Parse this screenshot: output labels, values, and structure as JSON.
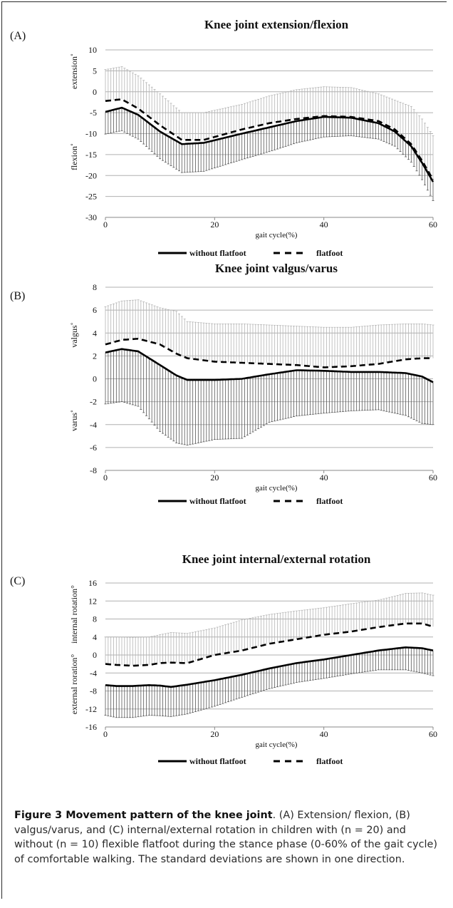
{
  "caption": {
    "title": "Figure 3 Movement pattern of the knee joint",
    "body": ". (A) Extension/ flexion, (B) valgus/varus, and (C) internal/external rotation in children with (n = 20) and without (n = 10) flexible flatfoot during the stance phase (0-60% of the gait cycle) of comfortable walking. The standard deviations are shown in one direction."
  },
  "colors": {
    "without_flatfoot": "#000000",
    "flatfoot": "#000000",
    "sd_without": "#555555",
    "sd_flatfoot": "#b4b4b4",
    "gridline": "#b0b0b0"
  },
  "chart_data": [
    {
      "panel": "(A)",
      "type": "line",
      "title": "Knee joint extension/flexion",
      "xlabel": "gait cycle(%)",
      "ylabel_upper": "extension˚",
      "ylabel_lower": "flexion˚",
      "xlim": [
        0,
        60
      ],
      "ylim": [
        -30,
        10
      ],
      "xticks": [
        0,
        20,
        40,
        60
      ],
      "yticks": [
        -30,
        -25,
        -20,
        -15,
        -10,
        -5,
        0,
        5,
        10
      ],
      "grid": true,
      "legend_position": "bottom-center",
      "series": [
        {
          "name": "without flatfoot",
          "style": "solid",
          "x": [
            0,
            3,
            6,
            10,
            14,
            18,
            25,
            30,
            35,
            40,
            45,
            50,
            53,
            56,
            58,
            60
          ],
          "y": [
            -4.8,
            -3.8,
            -5.5,
            -9.5,
            -12.5,
            -12.2,
            -10.0,
            -8.5,
            -7.0,
            -6.0,
            -6.2,
            -7.5,
            -9.5,
            -13,
            -17,
            -21.5
          ],
          "sd": [
            5.3,
            5.5,
            5.8,
            6.5,
            6.8,
            6.8,
            6.2,
            5.8,
            5.2,
            4.8,
            4.3,
            3.8,
            3.5,
            3.8,
            4.0,
            4.5
          ],
          "sd_direction": "down"
        },
        {
          "name": "flatfoot",
          "style": "dashed",
          "x": [
            0,
            3,
            6,
            10,
            14,
            18,
            25,
            30,
            35,
            40,
            45,
            50,
            53,
            56,
            58,
            60
          ],
          "y": [
            -2.2,
            -1.8,
            -4.0,
            -8.0,
            -11.5,
            -11.5,
            -9.0,
            -7.5,
            -6.5,
            -5.8,
            -6.0,
            -7.0,
            -9.0,
            -12.5,
            -16.5,
            -21.0
          ],
          "sd": [
            7.5,
            7.8,
            7.8,
            7.5,
            6.5,
            6.5,
            6.0,
            6.5,
            7.0,
            7.0,
            7.0,
            6.5,
            7.0,
            9.0,
            10.0,
            10.5
          ],
          "sd_direction": "up"
        }
      ]
    },
    {
      "panel": "(B)",
      "type": "line",
      "title": "Knee joint valgus/varus",
      "xlabel": "gait cycle(%)",
      "ylabel_upper": "valgus˚",
      "ylabel_lower": "varus˚",
      "xlim": [
        0,
        60
      ],
      "ylim": [
        -8,
        8
      ],
      "xticks": [
        0,
        20,
        40,
        60
      ],
      "yticks": [
        -8,
        -6,
        -4,
        -2,
        0,
        2,
        4,
        6,
        8
      ],
      "grid": true,
      "legend_position": "bottom-center",
      "series": [
        {
          "name": "without flatfoot",
          "style": "solid",
          "x": [
            0,
            3,
            6,
            10,
            13,
            15,
            20,
            25,
            30,
            35,
            40,
            45,
            50,
            55,
            58,
            60
          ],
          "y": [
            2.3,
            2.6,
            2.4,
            1.2,
            0.3,
            -0.1,
            -0.1,
            0.0,
            0.4,
            0.75,
            0.7,
            0.6,
            0.6,
            0.5,
            0.2,
            -0.3
          ],
          "sd": [
            4.5,
            4.6,
            4.8,
            5.8,
            5.9,
            5.7,
            5.2,
            5.2,
            4.2,
            4.0,
            3.7,
            3.4,
            3.3,
            3.7,
            4.1,
            3.7
          ],
          "sd_direction": "down"
        },
        {
          "name": "flatfoot",
          "style": "dashed",
          "x": [
            0,
            3,
            6,
            10,
            13,
            15,
            20,
            25,
            30,
            35,
            40,
            45,
            50,
            55,
            58,
            60
          ],
          "y": [
            3.0,
            3.4,
            3.5,
            3.0,
            2.2,
            1.8,
            1.5,
            1.4,
            1.3,
            1.2,
            1.0,
            1.1,
            1.3,
            1.7,
            1.8,
            1.8
          ],
          "sd": [
            3.3,
            3.4,
            3.4,
            3.2,
            3.7,
            3.2,
            3.3,
            3.4,
            3.4,
            3.4,
            3.5,
            3.4,
            3.4,
            3.1,
            3.0,
            2.9
          ],
          "sd_direction": "up"
        }
      ]
    },
    {
      "panel": "(C)",
      "type": "line",
      "title": "Knee joint internal/external rotation",
      "xlabel": "gait cycle(%)",
      "ylabel_upper": "internal rotation°",
      "ylabel_lower": "external roration°",
      "xlim": [
        0,
        60
      ],
      "ylim": [
        -16,
        16
      ],
      "xticks": [
        0,
        20,
        40,
        60
      ],
      "yticks": [
        -16,
        -12,
        -8,
        -4,
        0,
        4,
        8,
        12,
        16
      ],
      "grid": true,
      "legend_position": "bottom-center",
      "series": [
        {
          "name": "without flatfoot",
          "style": "solid",
          "x": [
            0,
            2,
            5,
            8,
            10,
            12,
            15,
            20,
            25,
            30,
            35,
            40,
            45,
            50,
            55,
            58,
            60
          ],
          "y": [
            -6.7,
            -6.9,
            -6.9,
            -6.7,
            -6.8,
            -7.1,
            -6.6,
            -5.6,
            -4.4,
            -3.0,
            -1.8,
            -1.0,
            0.0,
            1.0,
            1.7,
            1.5,
            1.0
          ],
          "sd": [
            6.7,
            7.0,
            7.0,
            6.7,
            6.7,
            6.6,
            6.5,
            5.8,
            5.0,
            4.5,
            4.3,
            4.2,
            4.2,
            4.3,
            5.0,
            5.5,
            5.6
          ],
          "sd_direction": "down"
        },
        {
          "name": "flatfoot",
          "style": "dashed",
          "x": [
            0,
            2,
            5,
            8,
            10,
            12,
            15,
            20,
            25,
            30,
            35,
            40,
            45,
            50,
            55,
            58,
            60
          ],
          "y": [
            -2.0,
            -2.2,
            -2.4,
            -2.2,
            -1.8,
            -1.7,
            -1.8,
            0.0,
            1.0,
            2.5,
            3.5,
            4.5,
            5.2,
            6.2,
            7.0,
            7.0,
            6.3
          ],
          "sd": [
            6.0,
            6.2,
            6.3,
            6.2,
            6.3,
            6.7,
            6.6,
            6.0,
            6.8,
            6.5,
            6.3,
            6.0,
            6.2,
            6.0,
            6.7,
            6.8,
            7.0
          ],
          "sd_direction": "up"
        }
      ]
    }
  ]
}
